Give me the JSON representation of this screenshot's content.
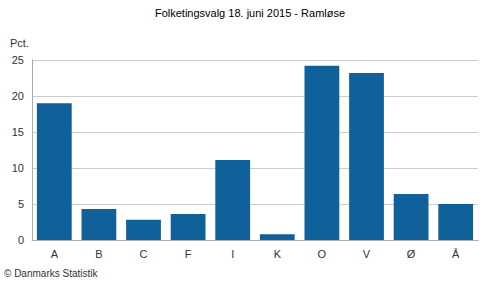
{
  "chart_data": {
    "type": "bar",
    "title": "Folketingsvalg 18. juni 2015 - Ramløse",
    "ylabel": "Pct.",
    "categories": [
      "A",
      "B",
      "C",
      "F",
      "I",
      "K",
      "O",
      "V",
      "Ø",
      "Å"
    ],
    "values": [
      19.0,
      4.3,
      2.8,
      3.6,
      11.1,
      0.8,
      24.2,
      23.2,
      6.4,
      5.0
    ],
    "color": "#10609a",
    "ylim": [
      0,
      25
    ],
    "yticks": [
      0,
      5,
      10,
      15,
      20,
      25
    ],
    "grid": true,
    "annotations": [
      "© Danmarks Statistik"
    ]
  }
}
